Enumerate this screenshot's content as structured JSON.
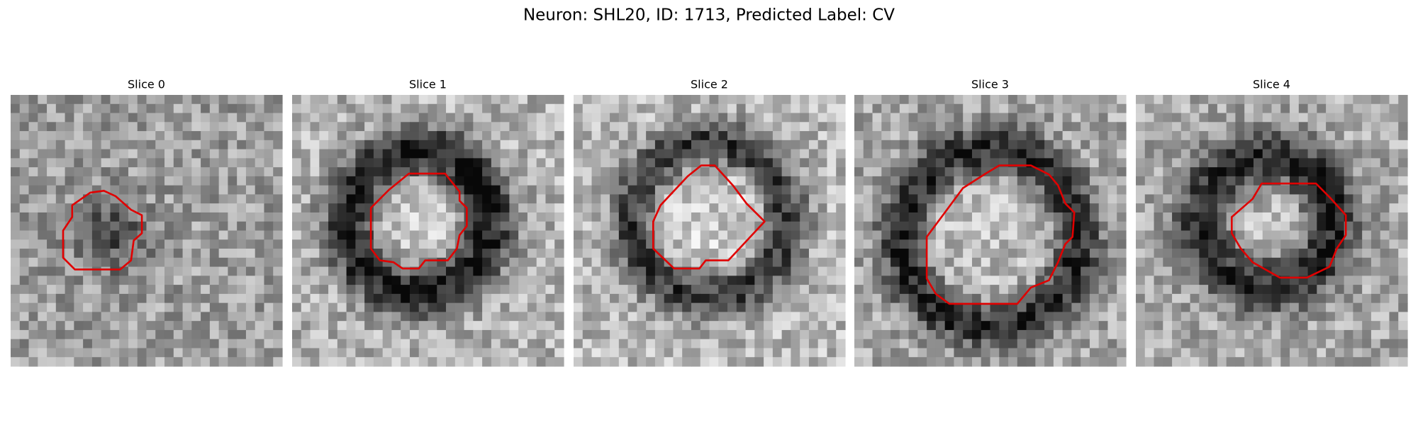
{
  "title": "Neuron: SHL20, ID: 1713, Predicted Label: CV",
  "panels": [
    {
      "title": "Slice 0"
    },
    {
      "title": "Slice 1"
    },
    {
      "title": "Slice 2"
    },
    {
      "title": "Slice 3"
    },
    {
      "title": "Slice 4"
    }
  ]
}
